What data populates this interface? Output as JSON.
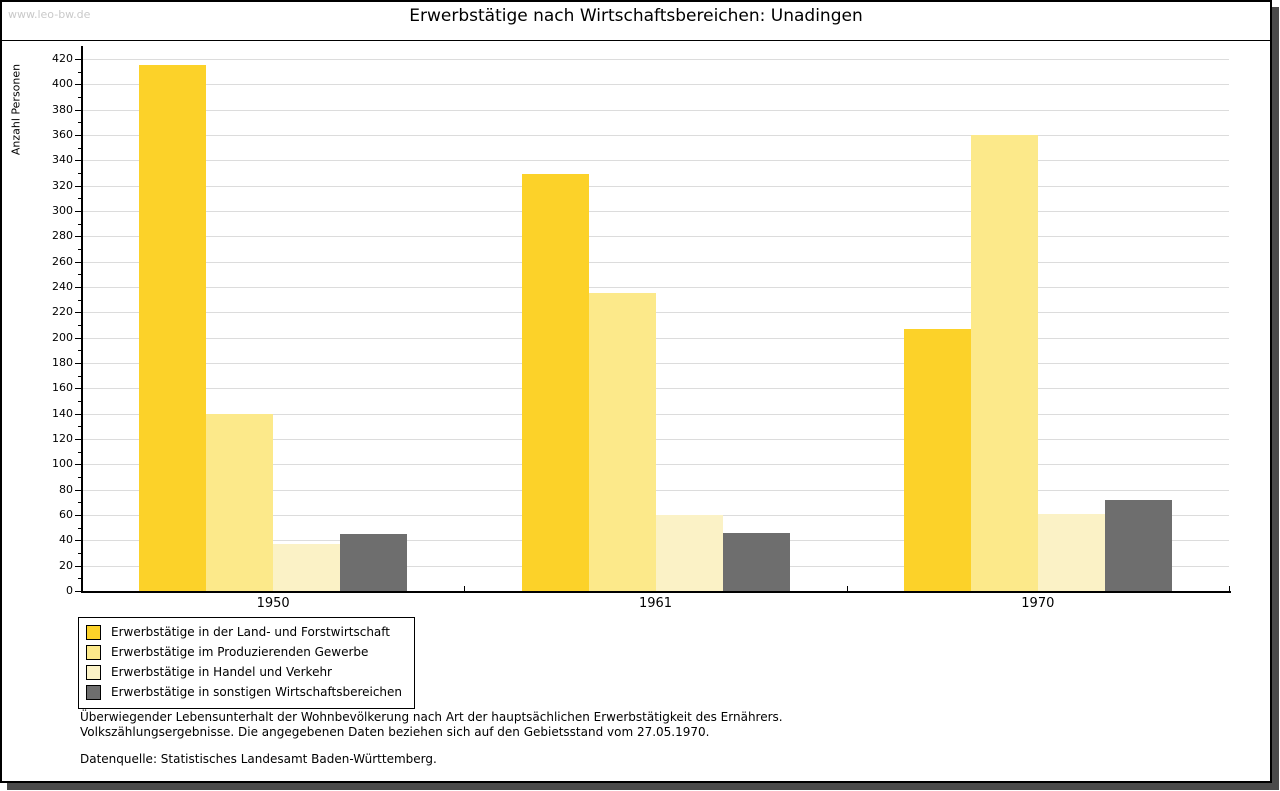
{
  "page": {
    "watermark": "www.leo-bw.de",
    "title": "Erwerbstätige nach Wirtschaftsbereichen: Unadingen"
  },
  "chart_data": {
    "type": "bar",
    "title": "Erwerbstätige nach Wirtschaftsbereichen: Unadingen",
    "xlabel": "",
    "ylabel": "Anzahl Personen",
    "categories": [
      "1950",
      "1961",
      "1970"
    ],
    "series": [
      {
        "name": "Erwerbstätige in der Land- und Forstwirtschaft",
        "color": "#fcd229",
        "values": [
          415,
          329,
          207
        ]
      },
      {
        "name": "Erwerbstätige im Produzierenden Gewerbe",
        "color": "#fce98a",
        "values": [
          140,
          235,
          360
        ]
      },
      {
        "name": "Erwerbstätige in Handel und Verkehr",
        "color": "#fbf2c6",
        "values": [
          37,
          60,
          61
        ]
      },
      {
        "name": "Erwerbstätige in sonstigen Wirtschaftsbereichen",
        "color": "#6e6e6e",
        "values": [
          45,
          46,
          72
        ]
      }
    ],
    "ylim": [
      0,
      420
    ],
    "yticks": [
      0,
      20,
      40,
      60,
      80,
      100,
      120,
      140,
      160,
      180,
      200,
      220,
      240,
      260,
      280,
      300,
      320,
      340,
      360,
      380,
      400,
      420
    ],
    "minor_tick_step": 10,
    "grid": "horizontal",
    "gridline_color": "#dcdcdc",
    "legend_position": "bottom-left"
  },
  "footer": {
    "note_line1": "Überwiegender Lebensunterhalt der Wohnbevölkerung nach Art der hauptsächlichen Erwerbstätigkeit des Ernährers.",
    "note_line2": "Volkszählungsergebnisse. Die angegebenen Daten beziehen sich auf den Gebietsstand vom 27.05.1970.",
    "source": "Datenquelle: Statistisches Landesamt Baden-Württemberg."
  }
}
